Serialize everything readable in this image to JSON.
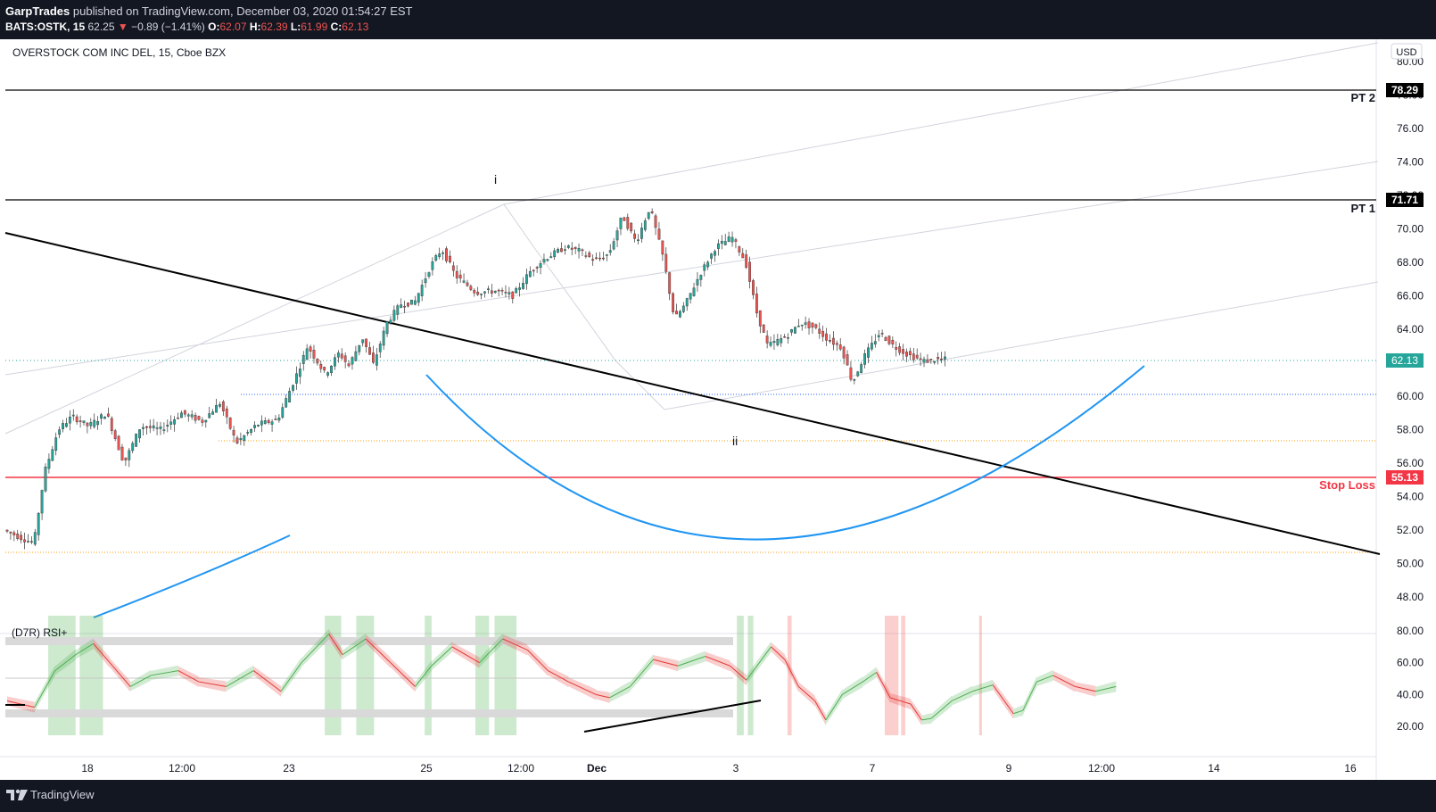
{
  "header": {
    "author": "GarpTrades",
    "published_text": "published on TradingView.com, December 03, 2020 01:54:27 EST",
    "symbol": "BATS:OSTK, 15",
    "last": "62.25",
    "change_arrow": "▼",
    "change": "−0.89 (−1.41%)",
    "o_label": "O:",
    "o": "62.07",
    "h_label": "H:",
    "h": "62.39",
    "l_label": "L:",
    "l": "61.99",
    "c_label": "C:",
    "c": "62.13"
  },
  "chart": {
    "legend": "OVERSTOCK COM INC DEL, 15, Cboe BZX",
    "currency_button": "USD",
    "price_axis_ticks": [
      "80.00",
      "78.00",
      "76.00",
      "74.00",
      "72.00",
      "70.00",
      "68.00",
      "66.00",
      "64.00",
      "62.00",
      "60.00",
      "58.00",
      "56.00",
      "54.00",
      "52.00",
      "50.00",
      "48.00"
    ],
    "time_axis_ticks": [
      "18",
      "12:00",
      "23",
      "25",
      "12:00",
      "Dec",
      "3",
      "7",
      "9",
      "12:00",
      "14",
      "16"
    ],
    "horizontal_levels": [
      {
        "label": "PT 2",
        "value": "78.29",
        "color": "#000000"
      },
      {
        "label": "PT 1",
        "value": "71.71",
        "color": "#000000"
      },
      {
        "label": "Stop Loss",
        "value": "55.13",
        "color": "#f23645"
      }
    ],
    "last_price_badge": "62.13",
    "wave_labels": [
      "i",
      "ii"
    ],
    "rsi_panel": {
      "title": "(D7R) RSI+",
      "axis_ticks": [
        "80.00",
        "60.00",
        "40.00",
        "20.00"
      ]
    }
  },
  "chart_data": {
    "type": "candlestick",
    "title": "OVERSTOCK COM INC DEL, 15, Cboe BZX",
    "ylim": [
      47,
      81
    ],
    "close_path_points": [
      [
        0,
        52.0
      ],
      [
        0.022,
        51.2
      ],
      [
        0.03,
        55.5
      ],
      [
        0.04,
        58.0
      ],
      [
        0.05,
        58.8
      ],
      [
        0.062,
        58.2
      ],
      [
        0.075,
        59.0
      ],
      [
        0.088,
        56.0
      ],
      [
        0.1,
        58.2
      ],
      [
        0.115,
        58.0
      ],
      [
        0.13,
        59.0
      ],
      [
        0.145,
        58.5
      ],
      [
        0.158,
        59.6
      ],
      [
        0.17,
        57.2
      ],
      [
        0.185,
        58.3
      ],
      [
        0.2,
        58.6
      ],
      [
        0.215,
        61.5
      ],
      [
        0.222,
        63.0
      ],
      [
        0.235,
        61.3
      ],
      [
        0.245,
        62.6
      ],
      [
        0.252,
        61.8
      ],
      [
        0.262,
        63.5
      ],
      [
        0.27,
        61.9
      ],
      [
        0.28,
        64.4
      ],
      [
        0.29,
        65.5
      ],
      [
        0.3,
        65.6
      ],
      [
        0.312,
        67.8
      ],
      [
        0.32,
        68.8
      ],
      [
        0.33,
        67.2
      ],
      [
        0.345,
        66.2
      ],
      [
        0.36,
        66.3
      ],
      [
        0.372,
        66.0
      ],
      [
        0.385,
        67.5
      ],
      [
        0.395,
        68.2
      ],
      [
        0.41,
        68.9
      ],
      [
        0.42,
        68.7
      ],
      [
        0.432,
        68.1
      ],
      [
        0.442,
        68.5
      ],
      [
        0.452,
        70.8
      ],
      [
        0.462,
        69.2
      ],
      [
        0.472,
        71.3
      ],
      [
        0.482,
        68.2
      ],
      [
        0.49,
        64.6
      ],
      [
        0.498,
        65.5
      ],
      [
        0.508,
        67.2
      ],
      [
        0.52,
        68.9
      ],
      [
        0.532,
        69.5
      ],
      [
        0.542,
        68.0
      ],
      [
        0.55,
        65.0
      ],
      [
        0.558,
        63.0
      ],
      [
        0.572,
        63.6
      ],
      [
        0.582,
        64.4
      ],
      [
        0.592,
        64.1
      ],
      [
        0.602,
        63.4
      ],
      [
        0.612,
        62.9
      ],
      [
        0.62,
        60.8
      ],
      [
        0.628,
        62.3
      ],
      [
        0.64,
        63.8
      ],
      [
        0.65,
        63.0
      ],
      [
        0.66,
        62.5
      ],
      [
        0.672,
        62.1
      ],
      [
        0.685,
        62.2
      ]
    ],
    "resistance_levels": {
      "PT 2": 78.29,
      "PT 1": 71.71
    },
    "stop_loss": 55.13,
    "last_price": 62.13,
    "rsi_axis": [
      20,
      80
    ],
    "rsi_path_points": [
      [
        0,
        36
      ],
      [
        0.02,
        32
      ],
      [
        0.035,
        55
      ],
      [
        0.05,
        65
      ],
      [
        0.063,
        72
      ],
      [
        0.075,
        60
      ],
      [
        0.09,
        45
      ],
      [
        0.105,
        52
      ],
      [
        0.125,
        55
      ],
      [
        0.14,
        48
      ],
      [
        0.16,
        45
      ],
      [
        0.18,
        55
      ],
      [
        0.2,
        42
      ],
      [
        0.215,
        60
      ],
      [
        0.235,
        78
      ],
      [
        0.245,
        65
      ],
      [
        0.262,
        75
      ],
      [
        0.28,
        60
      ],
      [
        0.298,
        45
      ],
      [
        0.31,
        58
      ],
      [
        0.325,
        70
      ],
      [
        0.345,
        60
      ],
      [
        0.362,
        75
      ],
      [
        0.38,
        68
      ],
      [
        0.395,
        55
      ],
      [
        0.41,
        48
      ],
      [
        0.43,
        40
      ],
      [
        0.44,
        38
      ],
      [
        0.455,
        45
      ],
      [
        0.472,
        62
      ],
      [
        0.49,
        58
      ],
      [
        0.51,
        64
      ],
      [
        0.528,
        58
      ],
      [
        0.54,
        49
      ],
      [
        0.558,
        70
      ],
      [
        0.568,
        62
      ],
      [
        0.578,
        45
      ],
      [
        0.59,
        36
      ],
      [
        0.598,
        24
      ],
      [
        0.61,
        40
      ],
      [
        0.625,
        48
      ],
      [
        0.635,
        54
      ],
      [
        0.645,
        38
      ],
      [
        0.66,
        34
      ],
      [
        0.668,
        24
      ],
      [
        0.675,
        25
      ],
      [
        0.69,
        36
      ],
      [
        0.705,
        42
      ],
      [
        0.72,
        46
      ],
      [
        0.735,
        28
      ],
      [
        0.742,
        30
      ],
      [
        0.752,
        48
      ],
      [
        0.764,
        52
      ],
      [
        0.78,
        45
      ],
      [
        0.795,
        42
      ],
      [
        0.81,
        45
      ]
    ]
  }
}
